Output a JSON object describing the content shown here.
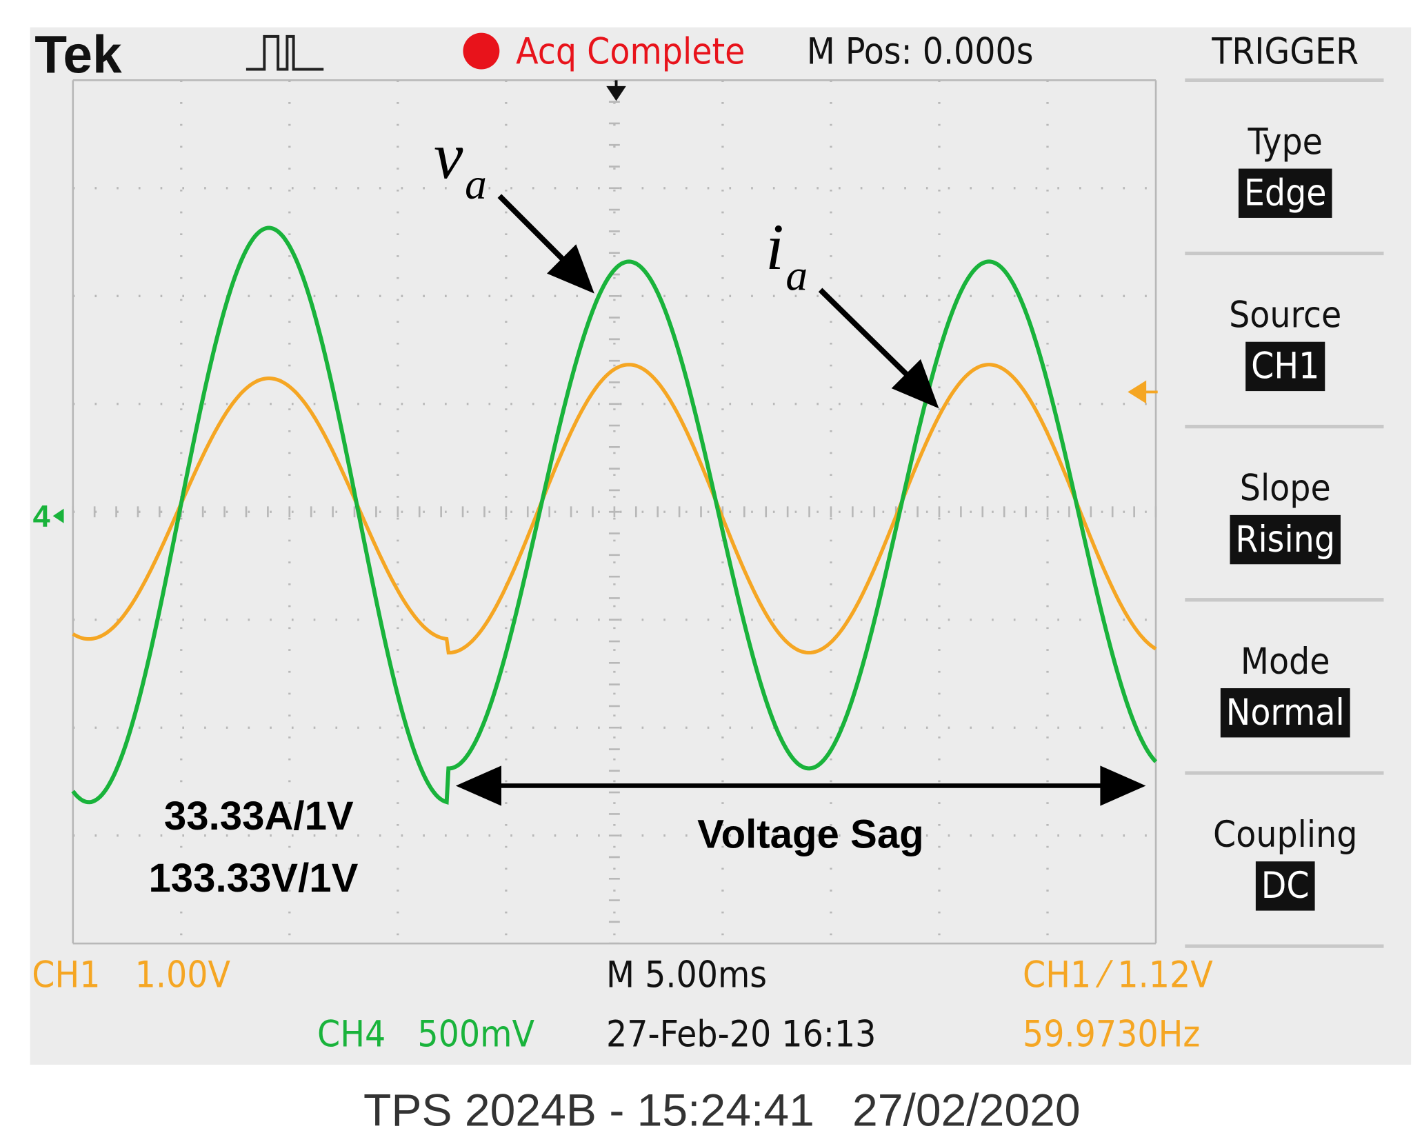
{
  "header": {
    "brand": "Tek",
    "status": "Acq Complete",
    "position": "M Pos: 0.000s"
  },
  "menu": {
    "title": "TRIGGER",
    "items": [
      {
        "label": "Type",
        "value": "Edge"
      },
      {
        "label": "Source",
        "value": "CH1"
      },
      {
        "label": "Slope",
        "value": "Rising"
      },
      {
        "label": "Mode",
        "value": "Normal"
      },
      {
        "label": "Coupling",
        "value": "DC"
      }
    ]
  },
  "footer": {
    "ch1_name": "CH1",
    "ch1_scale": "1.00V",
    "timebase": "M 5.00ms",
    "trigger_level": "CH1 ⁄ 1.12V",
    "ch4_name": "CH4",
    "ch4_scale": "500mV",
    "datetime": "27-Feb-20 16:13",
    "frequency": "59.9730Hz"
  },
  "annotations": {
    "voltage_symbol": "v",
    "voltage_subscript": "a",
    "current_symbol": "i",
    "current_subscript": "a",
    "current_scale": "33.33A/1V",
    "voltage_scale": "133.33V/1V",
    "event": "Voltage Sag"
  },
  "caption": "TPS 2024B - 15:24:41   27/02/2020"
}
